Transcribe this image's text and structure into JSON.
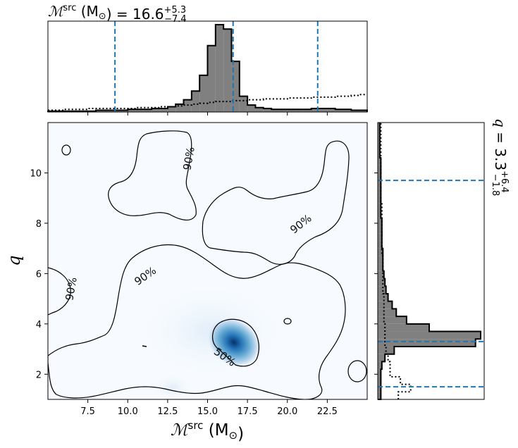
{
  "chart_data": [
    {
      "type": "histogram",
      "panel": "top-marginal",
      "title_parts": {
        "symbol": "ℳ",
        "sup": "src",
        "unit": "(M",
        "sun": "⊙",
        "close": ")",
        "equals": "=",
        "median": "16.6",
        "plus": "+5.3",
        "minus": "−7.4"
      },
      "bins_start": 5.0,
      "bin_width": 0.5,
      "posterior_counts": [
        1,
        1,
        1,
        1,
        1,
        1,
        2,
        2,
        2,
        2,
        3,
        3,
        3,
        4,
        4,
        6,
        9,
        14,
        24,
        42,
        76,
        100,
        95,
        58,
        18,
        8,
        5,
        4,
        3,
        3,
        3,
        3,
        3,
        4,
        4,
        4,
        3,
        3,
        2,
        2
      ],
      "prior_counts": [
        2,
        2,
        3,
        3,
        3,
        4,
        4,
        4,
        4,
        4,
        4,
        5,
        5,
        5,
        6,
        6,
        7,
        8,
        9,
        10,
        11,
        12,
        12,
        13,
        13,
        14,
        14,
        15,
        15,
        15,
        16,
        16,
        16,
        17,
        17,
        17,
        18,
        18,
        19,
        20
      ],
      "lines": [
        9.2,
        16.6,
        21.9
      ],
      "xlim": [
        5.0,
        25.0
      ]
    },
    {
      "type": "heatmap",
      "panel": "joint",
      "xlabel_parts": {
        "symbol": "ℳ",
        "sup": "src",
        "unit": "(M",
        "sun": "⊙",
        "close": ")"
      },
      "ylabel": "q",
      "xlim": [
        5.0,
        25.0
      ],
      "ylim": [
        1.0,
        12.0
      ],
      "xticks": [
        "7.5",
        "10.0",
        "12.5",
        "15.0",
        "17.5",
        "20.0",
        "22.5"
      ],
      "yticks": [
        "2",
        "4",
        "6",
        "8",
        "10"
      ],
      "peak": {
        "x": 16.8,
        "y": 3.3
      },
      "contour_levels": [
        "50%",
        "90%"
      ],
      "contour_label_50": "50%",
      "contour_label_90": "90%"
    },
    {
      "type": "histogram",
      "panel": "right-marginal",
      "title_parts": {
        "symbol": "q",
        "equals": "=",
        "median": "3.3",
        "plus": "+6.4",
        "minus": "−1.8"
      },
      "bins_start": 1.0,
      "bin_width": 0.3,
      "posterior_counts": [
        3,
        3,
        3,
        3,
        4,
        7,
        16,
        95,
        100,
        50,
        28,
        18,
        14,
        10,
        8,
        7,
        6,
        5,
        5,
        5,
        4,
        4,
        4,
        4,
        3,
        3,
        3,
        3,
        3,
        3,
        3,
        3,
        2,
        2,
        2,
        2,
        2
      ],
      "prior_counts": [
        20,
        32,
        22,
        12,
        12,
        10,
        8,
        7,
        7,
        7,
        6,
        6,
        6,
        6,
        5,
        5,
        5,
        5,
        5,
        4,
        4,
        4,
        4,
        4,
        4,
        4,
        3,
        3,
        3,
        3,
        3,
        3,
        3,
        3,
        3,
        3,
        3
      ],
      "lines": [
        1.5,
        3.3,
        9.7
      ],
      "ylim": [
        1.0,
        12.0
      ]
    }
  ],
  "colors": {
    "hist_fill": "#808080",
    "quantile_line": "#1f77b4",
    "contour": "#000000",
    "density": "Blues"
  }
}
